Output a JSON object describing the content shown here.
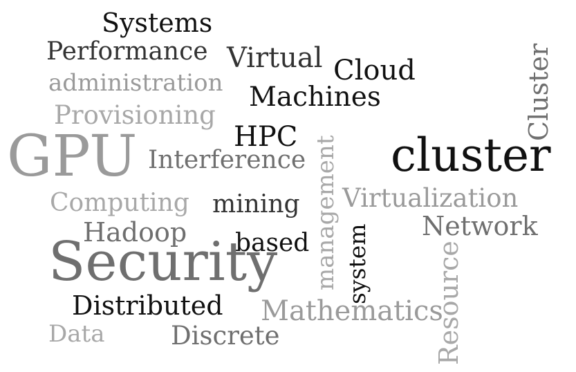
{
  "words": {
    "systems": "Systems",
    "performance": "Performance",
    "virtual": "Virtual",
    "cloud": "Cloud",
    "administration": "administration",
    "machines": "Machines",
    "provisioning": "Provisioning",
    "hpc": "HPC",
    "gpu": "GPU",
    "interference": "Interference",
    "cluster_big": "cluster",
    "cluster_vertical": "Cluster",
    "management": "management",
    "computing": "Computing",
    "mining": "mining",
    "virtualization": "Virtualization",
    "network": "Network",
    "hadoop": "Hadoop",
    "based": "based",
    "system": "system",
    "security": "Security",
    "resource": "Resource",
    "distributed": "Distributed",
    "mathematics": "Mathematics",
    "data": "Data",
    "discrete": "Discrete"
  },
  "colors": {
    "black": "#111111",
    "dark_gray": "#333333",
    "mid_gray": "#6f6f6f",
    "light_gray": "#9a9a9a"
  }
}
